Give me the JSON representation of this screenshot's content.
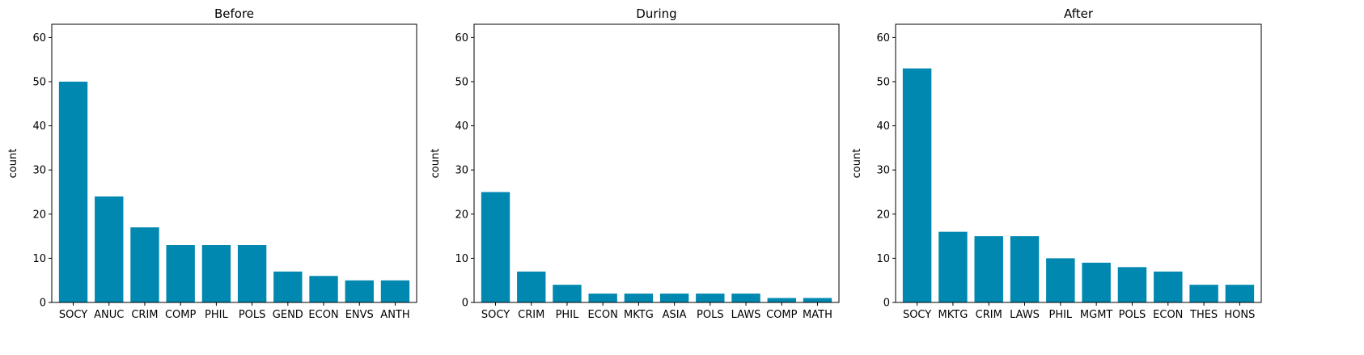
{
  "chart_data": [
    {
      "type": "bar",
      "title": "Before",
      "xlabel": "",
      "ylabel": "count",
      "ylim": [
        0,
        63
      ],
      "yticks": [
        0,
        10,
        20,
        30,
        40,
        50,
        60
      ],
      "categories": [
        "SOCY",
        "ANUC",
        "CRIM",
        "COMP",
        "PHIL",
        "POLS",
        "GEND",
        "ECON",
        "ENVS",
        "ANTH"
      ],
      "values": [
        50,
        24,
        17,
        13,
        13,
        13,
        7,
        6,
        5,
        5
      ],
      "grid": false,
      "bar_color": "#0088b0"
    },
    {
      "type": "bar",
      "title": "During",
      "xlabel": "",
      "ylabel": "count",
      "ylim": [
        0,
        63
      ],
      "yticks": [
        0,
        10,
        20,
        30,
        40,
        50,
        60
      ],
      "categories": [
        "SOCY",
        "CRIM",
        "PHIL",
        "ECON",
        "MKTG",
        "ASIA",
        "POLS",
        "LAWS",
        "COMP",
        "MATH"
      ],
      "values": [
        25,
        7,
        4,
        2,
        2,
        2,
        2,
        2,
        1,
        1
      ],
      "grid": false,
      "bar_color": "#0088b0"
    },
    {
      "type": "bar",
      "title": "After",
      "xlabel": "",
      "ylabel": "count",
      "ylim": [
        0,
        63
      ],
      "yticks": [
        0,
        10,
        20,
        30,
        40,
        50,
        60
      ],
      "categories": [
        "SOCY",
        "MKTG",
        "CRIM",
        "LAWS",
        "PHIL",
        "MGMT",
        "POLS",
        "ECON",
        "THES",
        "HONS"
      ],
      "values": [
        53,
        16,
        15,
        15,
        10,
        9,
        8,
        7,
        4,
        4
      ],
      "grid": false,
      "bar_color": "#0088b0"
    }
  ]
}
